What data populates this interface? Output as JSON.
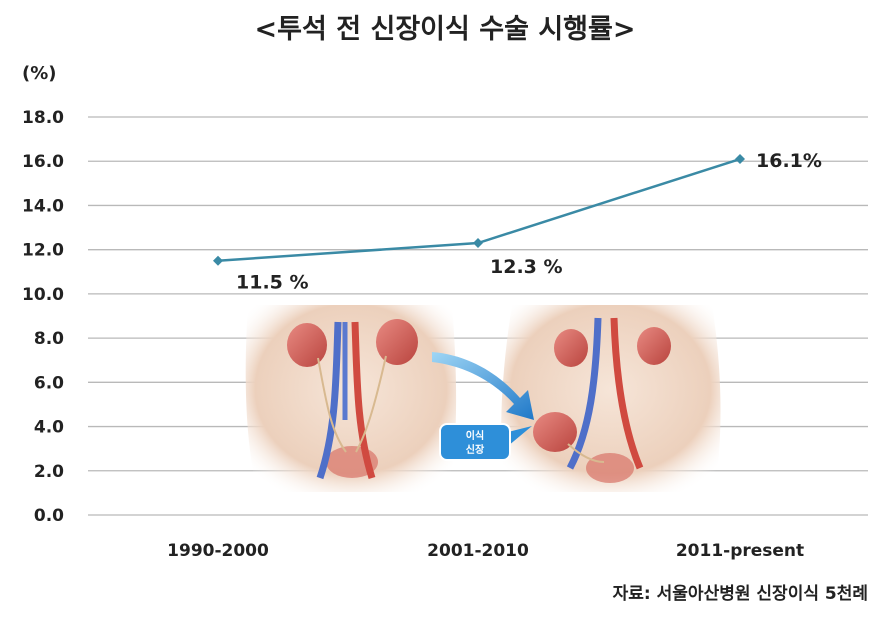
{
  "title": "<투석 전 신장이식 수술 시행률>",
  "source": "자료: 서울아산병원 신장이식 5천례",
  "illustration": {
    "callout_line1": "이식",
    "callout_line2": "신장"
  },
  "colors": {
    "line": "#3a8aa5",
    "grid": "#b9b9b9",
    "kidney": "#cf5a52",
    "skin": "#f3dccb",
    "callout": "#2e8fd9"
  },
  "chart_data": {
    "type": "line",
    "title": "<투석 전 신장이식 수술 시행률>",
    "ylabel": "(%)",
    "xlabel": "",
    "categories": [
      "1990-2000",
      "2001-2010",
      "2011-present"
    ],
    "series": [
      {
        "values": [
          11.5,
          12.3,
          16.1
        ]
      }
    ],
    "data_labels": [
      "11.5 %",
      "12.3 %",
      "16.1%"
    ],
    "ylim": [
      0,
      18
    ],
    "yticks": [
      "0.0",
      "2.0",
      "4.0",
      "6.0",
      "8.0",
      "10.0",
      "12.0",
      "14.0",
      "16.0",
      "18.0"
    ],
    "grid": true,
    "legend": "none"
  }
}
